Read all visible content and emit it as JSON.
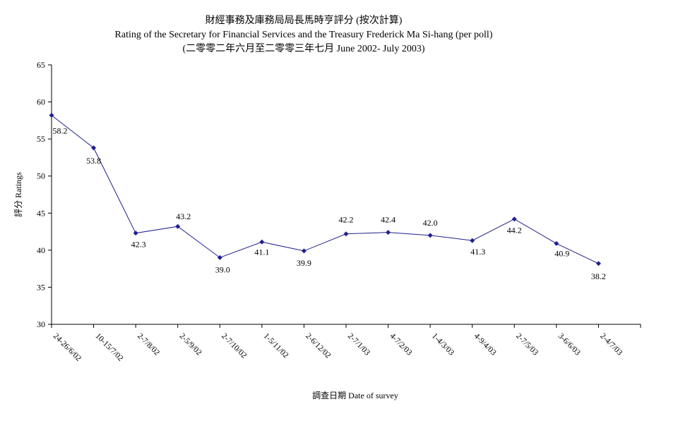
{
  "chart_data": {
    "type": "line",
    "title": "財經事務及庫務局局長馬時亨評分 (按次計算)",
    "subtitle": "Rating of the Secretary for Financial Services and the Treasury Frederick Ma Si-hang  (per poll)",
    "subtitle2": "(二零零二年六月至二零零三年七月 June 2002- July 2003)",
    "xlabel": "調查日期 Date of survey",
    "ylabel": "評分 Ratings",
    "ylim": [
      30,
      65
    ],
    "yticks": [
      30,
      35,
      40,
      45,
      50,
      55,
      60,
      65
    ],
    "categories": [
      "24-26/6/02",
      "10-15/7/02",
      "2-7/8/02",
      "2-5/9/02",
      "2-7/10/02",
      "1-5/11/02",
      "2-6/12/02",
      "2-7/1/03",
      "4-7/2/03",
      "1-4/3/03",
      "4-9/4/03",
      "2-7/5/03",
      "3-6/6/03",
      "2-4/7/03"
    ],
    "series": [
      {
        "values": [
          58.2,
          53.8,
          42.3,
          43.2,
          39.0,
          41.1,
          39.9,
          42.2,
          42.4,
          42.0,
          41.3,
          44.2,
          40.9,
          38.2
        ],
        "labels": [
          "58.2",
          "53.8",
          "42.3",
          "43.2",
          "39.0",
          "41.1",
          "39.9",
          "42.2",
          "42.4",
          "42.0",
          "41.3",
          "44.2",
          "40.9",
          "38.2"
        ],
        "color": "#1f1f8f"
      }
    ],
    "grid": false,
    "legend": "none"
  }
}
